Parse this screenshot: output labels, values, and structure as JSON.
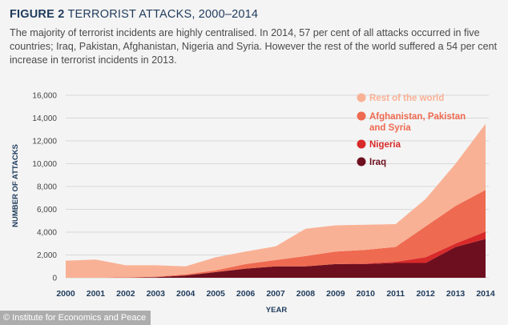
{
  "header": {
    "figure_label": "FIGURE 2",
    "figure_title": "TERRORIST ATTACKS, 2000–2014",
    "description": "The majority of terrorist incidents are highly centralised. In 2014, 57 per cent of all attacks occurred in five countries; Iraq, Pakistan, Afghanistan, Nigeria and Syria. However the rest of the world suffered a 54 per cent increase in terrorist incidents in 2013."
  },
  "source_caption": "© Institute for Economics and Peace",
  "chart_data": {
    "type": "area",
    "stacked": true,
    "xlabel": "YEAR",
    "ylabel": "NUMBER OF ATTACKS",
    "ylim": [
      0,
      16000
    ],
    "yticks": [
      "0",
      "2,000",
      "4,000",
      "6,000",
      "8,000",
      "10,000",
      "12,000",
      "14,000",
      "16,000"
    ],
    "x": [
      "2000",
      "2001",
      "2002",
      "2003",
      "2004",
      "2005",
      "2006",
      "2007",
      "2008",
      "2009",
      "2010",
      "2011",
      "2012",
      "2013",
      "2014"
    ],
    "grid": true,
    "legend_position": "top-right",
    "series": [
      {
        "name": "Iraq",
        "color": "#6e0f1f",
        "values": [
          0,
          0,
          0,
          50,
          200,
          500,
          800,
          1000,
          1000,
          1200,
          1200,
          1300,
          1300,
          2700,
          3400
        ]
      },
      {
        "name": "Nigeria",
        "color": "#d82a2a",
        "values": [
          0,
          0,
          0,
          0,
          0,
          0,
          0,
          0,
          0,
          0,
          50,
          100,
          500,
          300,
          650
        ]
      },
      {
        "name": "Afghanistan, Pakistan and Syria",
        "color": "#ee6a50",
        "values": [
          0,
          0,
          50,
          50,
          100,
          150,
          400,
          550,
          900,
          1100,
          1200,
          1300,
          2700,
          3300,
          3650
        ]
      },
      {
        "name": "Rest of the world",
        "color": "#f9b195",
        "values": [
          1500,
          1600,
          1050,
          1000,
          700,
          1150,
          1100,
          1200,
          2400,
          2300,
          2200,
          2000,
          2400,
          3700,
          5800
        ]
      }
    ]
  }
}
